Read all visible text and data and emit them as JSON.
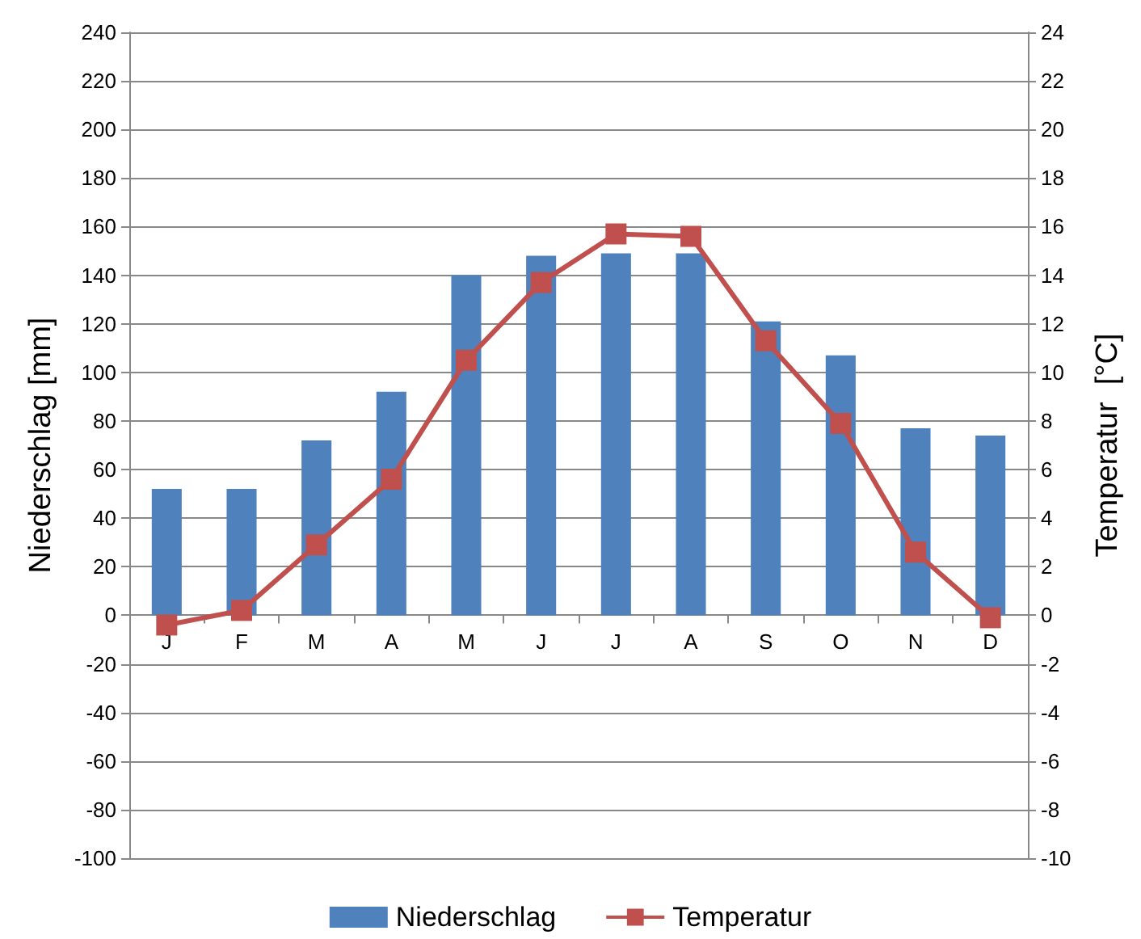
{
  "chart_data": {
    "type": "bar",
    "ylabel": "Niederschlag [mm]",
    "y2label": "Temperatur  [°C]",
    "categories": [
      "J",
      "F",
      "M",
      "A",
      "M",
      "J",
      "J",
      "A",
      "S",
      "O",
      "N",
      "D"
    ],
    "series": [
      {
        "name": "Niederschlag",
        "color": "#4f81bd",
        "values": [
          52,
          52,
          72,
          92,
          140,
          148,
          149,
          149,
          121,
          107,
          77,
          74
        ]
      },
      {
        "name": "Temperatur",
        "type": "line",
        "axis": "y2",
        "color": "#c0504d",
        "marker": "square",
        "values": [
          -0.4,
          0.2,
          2.9,
          5.6,
          10.5,
          13.7,
          15.7,
          15.6,
          11.3,
          7.9,
          2.6,
          -0.1
        ]
      }
    ],
    "ylim": [
      -100,
      240
    ],
    "yticks": [
      -100,
      -80,
      -60,
      -40,
      -20,
      0,
      20,
      40,
      60,
      80,
      100,
      120,
      140,
      160,
      180,
      200,
      220,
      240
    ],
    "y2lim": [
      -10,
      24
    ],
    "y2ticks": [
      -10,
      -8,
      -6,
      -4,
      -2,
      0,
      2,
      4,
      6,
      8,
      10,
      12,
      14,
      16,
      18,
      20,
      22,
      24
    ],
    "grid": "y",
    "legend": "bottom"
  }
}
